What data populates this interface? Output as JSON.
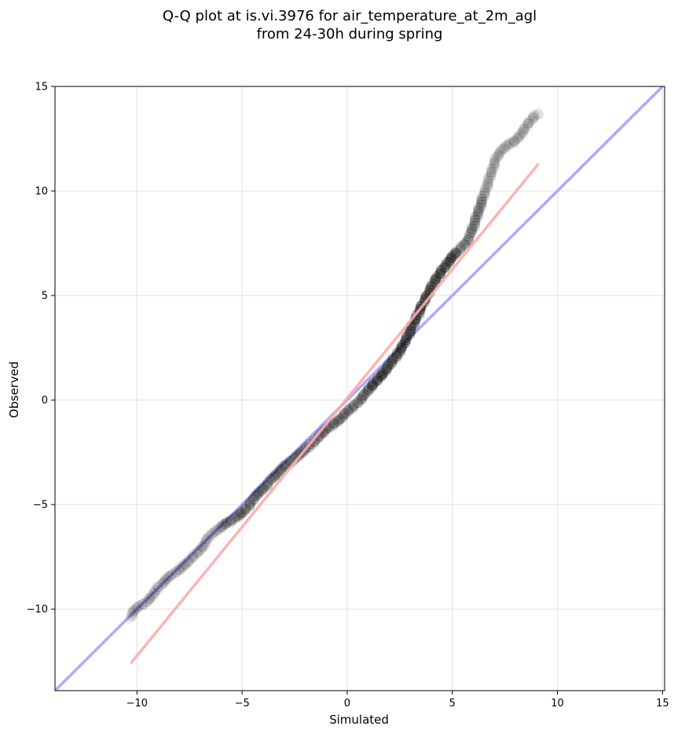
{
  "chart_data": {
    "type": "scatter",
    "title_line1": "Q-Q plot at is.vi.3976 for air_temperature_at_2m_agl",
    "title_line2": "from 24-30h during spring",
    "xlabel": "Simulated",
    "ylabel": "Observed",
    "xlim": [
      -13.9,
      15.1
    ],
    "ylim": [
      -13.9,
      15.0
    ],
    "xticks": [
      -10,
      -5,
      0,
      5,
      10,
      15
    ],
    "yticks": [
      -10,
      -5,
      0,
      5,
      10,
      15
    ],
    "xtick_labels": [
      "−10",
      "−5",
      "0",
      "5",
      "10",
      "15"
    ],
    "ytick_labels": [
      "−10",
      "−5",
      "0",
      "5",
      "10",
      "15"
    ],
    "grid": true,
    "reference_lines": [
      {
        "color": "#aaaaff",
        "from": [
          -13.9,
          -13.9
        ],
        "to": [
          15.1,
          15.1
        ]
      },
      {
        "color": "#ffaaaa",
        "from": [
          -10.3,
          -12.6
        ],
        "to": [
          9.1,
          11.3
        ]
      }
    ],
    "quantile_points": [
      [
        -10.3,
        -10.4
      ],
      [
        -10.2,
        -10.1
      ],
      [
        -10.0,
        -9.95
      ],
      [
        -9.7,
        -9.75
      ],
      [
        -9.5,
        -9.6
      ],
      [
        -9.2,
        -9.3
      ],
      [
        -9.0,
        -9.0
      ],
      [
        -8.8,
        -8.75
      ],
      [
        -8.6,
        -8.55
      ],
      [
        -8.4,
        -8.4
      ],
      [
        -8.1,
        -8.2
      ],
      [
        -7.9,
        -8.0
      ],
      [
        -7.6,
        -7.8
      ],
      [
        -7.3,
        -7.45
      ],
      [
        -7.0,
        -7.15
      ],
      [
        -6.8,
        -6.9
      ],
      [
        -6.6,
        -6.6
      ],
      [
        -6.4,
        -6.35
      ],
      [
        -6.1,
        -6.15
      ],
      [
        -5.8,
        -5.95
      ],
      [
        -5.5,
        -5.75
      ],
      [
        -5.2,
        -5.55
      ],
      [
        -4.9,
        -5.3
      ],
      [
        -4.6,
        -4.95
      ],
      [
        -4.4,
        -4.6
      ],
      [
        -4.1,
        -4.35
      ],
      [
        -3.8,
        -4.05
      ],
      [
        -3.6,
        -3.75
      ],
      [
        -3.3,
        -3.5
      ],
      [
        -3.0,
        -3.2
      ],
      [
        -2.7,
        -2.95
      ],
      [
        -2.4,
        -2.7
      ],
      [
        -2.1,
        -2.45
      ],
      [
        -1.8,
        -2.2
      ],
      [
        -1.5,
        -1.9
      ],
      [
        -1.2,
        -1.6
      ],
      [
        -0.9,
        -1.35
      ],
      [
        -0.6,
        -1.1
      ],
      [
        -0.3,
        -0.85
      ],
      [
        0.0,
        -0.55
      ],
      [
        0.3,
        -0.3
      ],
      [
        0.6,
        0.0
      ],
      [
        0.9,
        0.35
      ],
      [
        1.2,
        0.7
      ],
      [
        1.5,
        1.05
      ],
      [
        1.8,
        1.4
      ],
      [
        2.1,
        1.8
      ],
      [
        2.4,
        2.2
      ],
      [
        2.7,
        2.7
      ],
      [
        3.0,
        3.3
      ],
      [
        3.3,
        3.95
      ],
      [
        3.6,
        4.6
      ],
      [
        3.9,
        5.2
      ],
      [
        4.2,
        5.75
      ],
      [
        4.5,
        6.2
      ],
      [
        4.8,
        6.6
      ],
      [
        5.1,
        6.95
      ],
      [
        5.4,
        7.25
      ],
      [
        5.7,
        7.6
      ],
      [
        5.9,
        8.0
      ],
      [
        6.1,
        8.6
      ],
      [
        6.3,
        9.2
      ],
      [
        6.5,
        9.8
      ],
      [
        6.7,
        10.4
      ],
      [
        6.9,
        11.0
      ],
      [
        7.1,
        11.6
      ],
      [
        7.4,
        12.0
      ],
      [
        7.7,
        12.2
      ],
      [
        8.0,
        12.45
      ],
      [
        8.3,
        12.75
      ],
      [
        8.6,
        13.2
      ],
      [
        8.9,
        13.6
      ],
      [
        9.1,
        13.65
      ]
    ]
  }
}
